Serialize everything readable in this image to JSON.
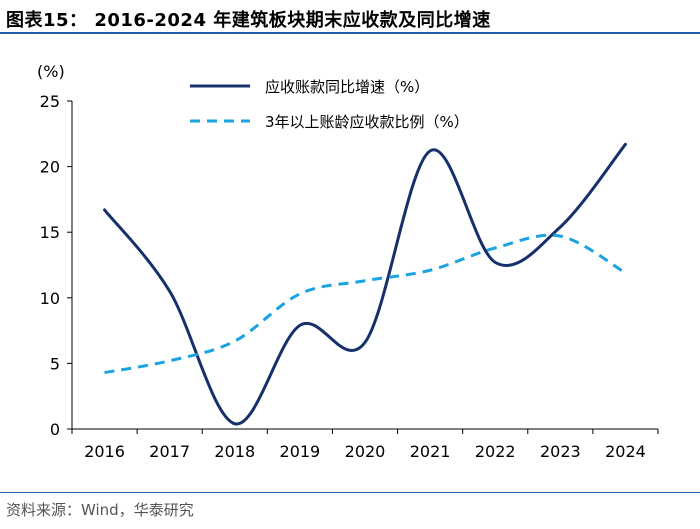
{
  "figure": {
    "title": "图表15： 2016-2024 年建筑板块期末应收款及同比增速",
    "source": "资料来源：Wind，华泰研究"
  },
  "chart_data": {
    "type": "line",
    "x": [
      "2016",
      "2017",
      "2018",
      "2019",
      "2020",
      "2021",
      "2022",
      "2023",
      "2024"
    ],
    "ylabel": "(%)",
    "ylim": [
      0,
      25
    ],
    "yticks": [
      "0",
      "5",
      "10",
      "15",
      "20",
      "25"
    ],
    "grid": false,
    "legend_position": "top",
    "series": [
      {
        "name": "应收账款同比增速（%）",
        "values": [
          16.7,
          10.5,
          0.4,
          7.9,
          6.6,
          21.2,
          12.7,
          15.4,
          21.7
        ],
        "color": "#17306b",
        "style": "solid"
      },
      {
        "name": "3年以上账龄应收款比例（%）",
        "values": [
          4.3,
          5.2,
          6.7,
          10.3,
          11.3,
          12.1,
          13.8,
          14.7,
          11.9
        ],
        "color": "#1aa3e0",
        "style": "dashed"
      }
    ]
  }
}
